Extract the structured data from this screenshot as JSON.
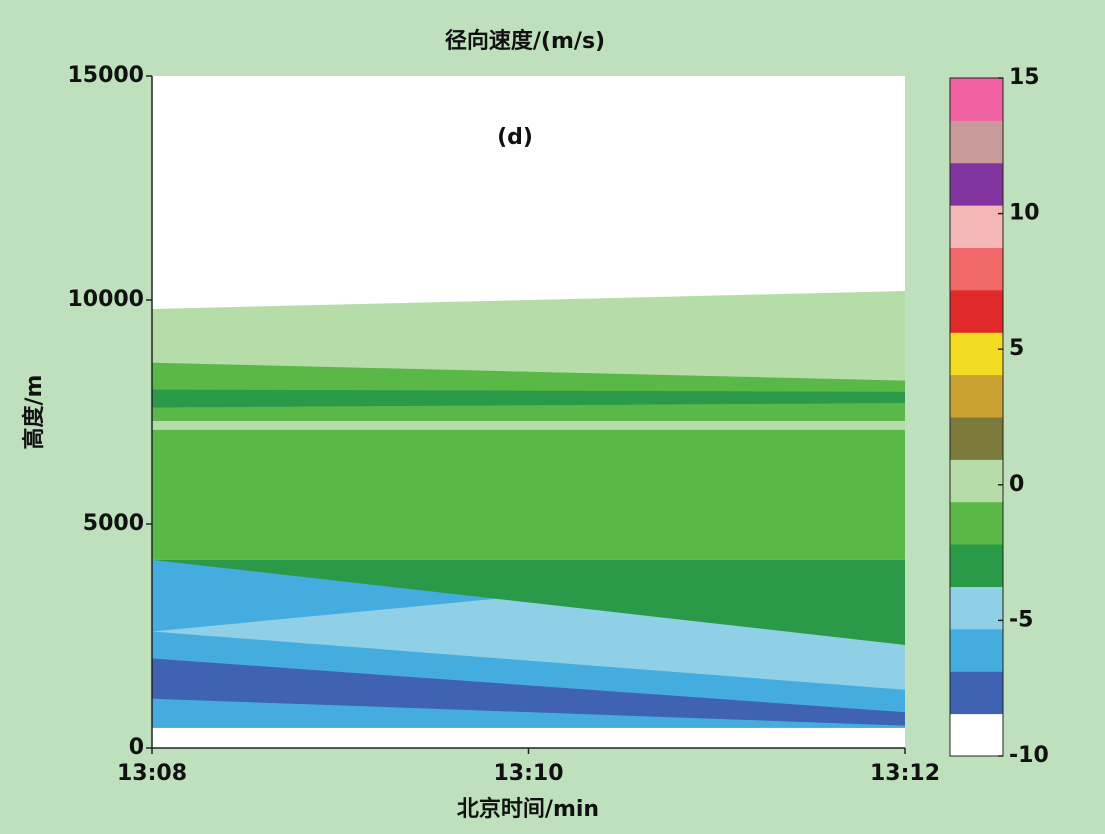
{
  "chart_data": {
    "type": "heatmap",
    "title": "径向速度/(m/s)",
    "annotation": "(d)",
    "x_label": "北京时间/min",
    "y_label": "高度/m",
    "xlim": [
      "13:08",
      "13:12"
    ],
    "xticks": [
      "13:08",
      "13:10",
      "13:12"
    ],
    "ylim": [
      0,
      15000
    ],
    "yticks": [
      0,
      5000,
      10000,
      15000
    ],
    "colorbar": {
      "lim": [
        -10,
        15
      ],
      "ticks": [
        -10,
        -5,
        0,
        5,
        10,
        15
      ],
      "colors": [
        "#ffffff",
        "#3f62b2",
        "#45ace0",
        "#8fd0e6",
        "#2a9a48",
        "#5ab848",
        "#b6dca8",
        "#7c7a3a",
        "#c9a231",
        "#f2dc22",
        "#e02a2a",
        "#f06868",
        "#f4b6b6",
        "#8134a0",
        "#c99a9a",
        "#f062a2"
      ]
    },
    "regions": [
      {
        "value": 0,
        "left": [
          7000,
          9800
        ],
        "right": [
          7000,
          10200
        ]
      },
      {
        "value": -1.5,
        "left": [
          7300,
          8600
        ],
        "right": [
          7300,
          8200
        ]
      },
      {
        "value": -3,
        "left": [
          7600,
          8000
        ],
        "right": [
          7700,
          7950
        ]
      },
      {
        "value": -1.5,
        "left": [
          4200,
          7100
        ],
        "right": [
          4200,
          7100
        ]
      },
      {
        "value": -4.5,
        "left": [
          450,
          4200
        ],
        "right": [
          450,
          4200
        ]
      },
      {
        "value": -6,
        "left": [
          2600,
          4200
        ],
        "right": [
          4200,
          4200
        ]
      },
      {
        "value": -3,
        "left": [
          4200,
          4200
        ],
        "right": [
          2300,
          4200
        ]
      },
      {
        "value": -6,
        "left": [
          2000,
          2600
        ],
        "right": [
          800,
          1300
        ]
      },
      {
        "value": -6,
        "left": [
          450,
          1100
        ],
        "right": [
          450,
          800
        ]
      },
      {
        "value": -7.5,
        "left": [
          1100,
          2000
        ],
        "right": [
          500,
          800
        ]
      }
    ]
  }
}
